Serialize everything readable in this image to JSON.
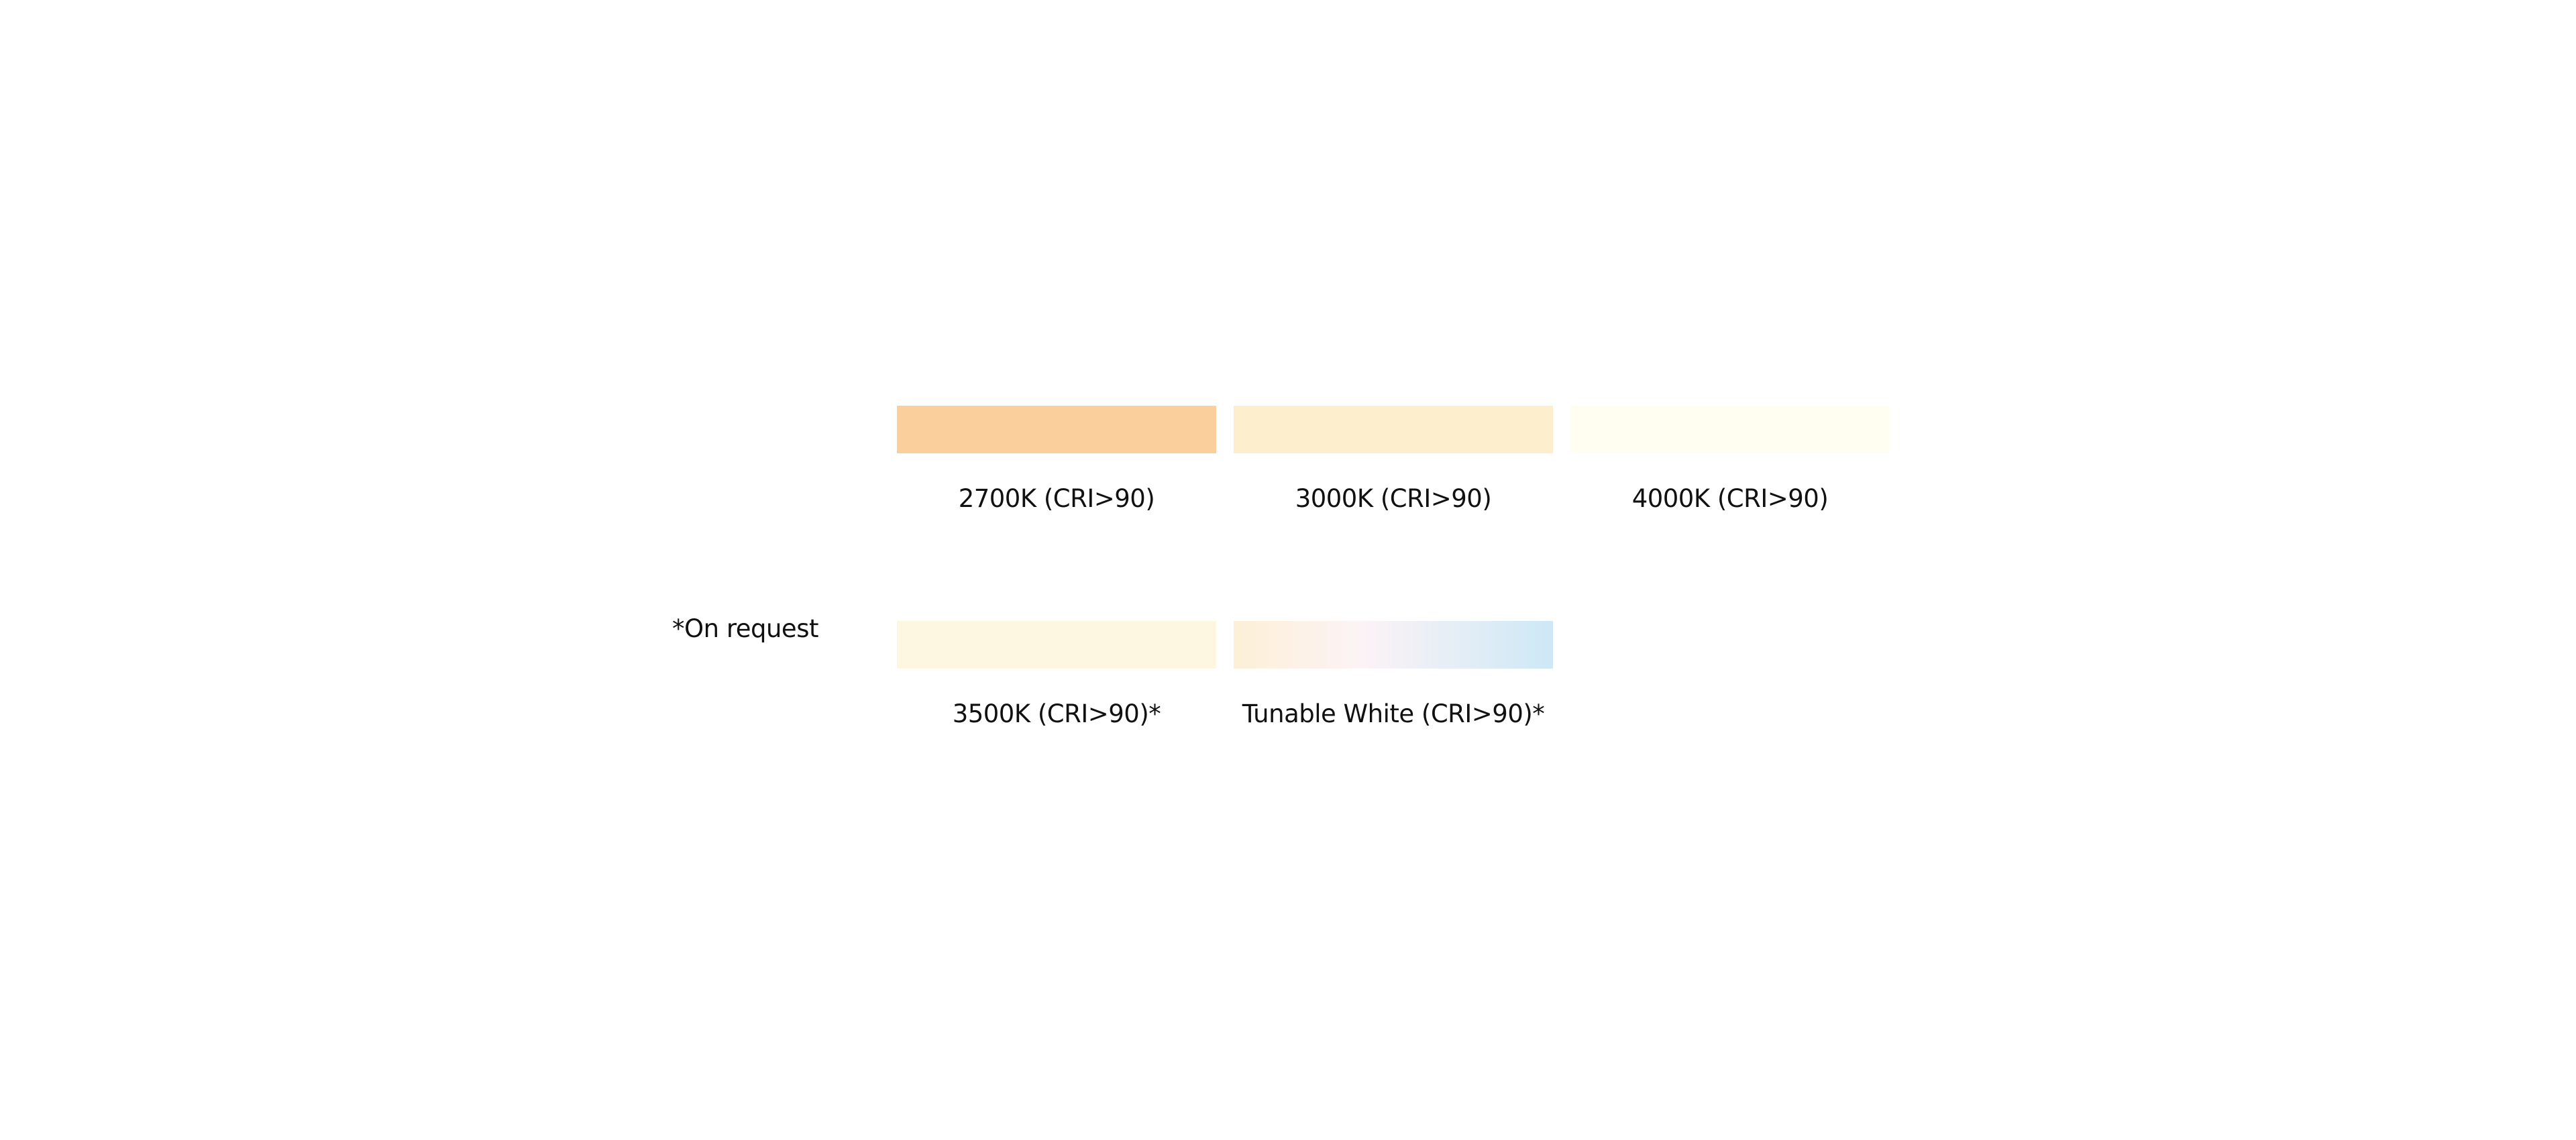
{
  "note": "*On request",
  "swatches": [
    {
      "label": "2700K (CRI>90)",
      "color": "#fbcf9b"
    },
    {
      "label": "3000K (CRI>90)",
      "color": "#fdeecd"
    },
    {
      "label": "4000K (CRI>90)",
      "color": "#fffef1"
    },
    {
      "label": "3500K (CRI>90)*",
      "color": "#fdf6e1"
    },
    {
      "label": "Tunable White (CRI>90)*",
      "gradient": [
        "#fdf0d6",
        "#fcf3f6",
        "#cde8f6"
      ]
    }
  ]
}
